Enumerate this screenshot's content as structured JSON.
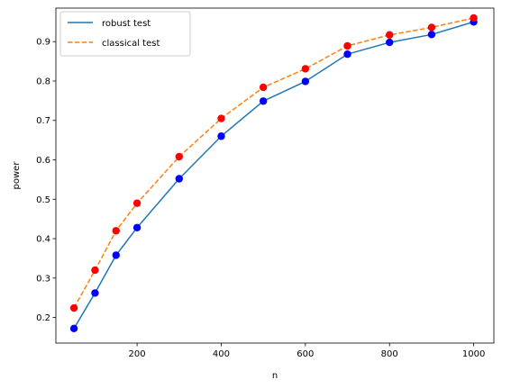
{
  "chart_data": {
    "type": "line",
    "title": "",
    "xlabel": "n",
    "ylabel": "power",
    "xlim": [
      7,
      1048
    ],
    "ylim": [
      0.135,
      0.985
    ],
    "x_ticks": [
      200,
      400,
      600,
      800,
      1000
    ],
    "x_tick_labels": [
      "200",
      "400",
      "600",
      "800",
      "1000"
    ],
    "y_ticks": [
      0.2,
      0.3,
      0.4,
      0.5,
      0.6,
      0.7,
      0.8,
      0.9
    ],
    "y_tick_labels": [
      "0.2",
      "0.3",
      "0.4",
      "0.5",
      "0.6",
      "0.7",
      "0.8",
      "0.9"
    ],
    "grid": false,
    "legend_position": "top-left",
    "x": [
      50,
      100,
      150,
      200,
      300,
      400,
      500,
      600,
      700,
      800,
      900,
      1000
    ],
    "series": [
      {
        "name": "robust test",
        "values": [
          0.172,
          0.262,
          0.358,
          0.428,
          0.552,
          0.66,
          0.749,
          0.799,
          0.868,
          0.898,
          0.918,
          0.95
        ],
        "line_color": "#1f77b4",
        "line_style": "solid",
        "marker_color": "#0000ff"
      },
      {
        "name": "classical test",
        "values": [
          0.224,
          0.32,
          0.42,
          0.49,
          0.608,
          0.705,
          0.784,
          0.831,
          0.889,
          0.917,
          0.936,
          0.96
        ],
        "line_color": "#ff7f0e",
        "line_style": "dashed",
        "marker_color": "#ff0000"
      }
    ]
  }
}
